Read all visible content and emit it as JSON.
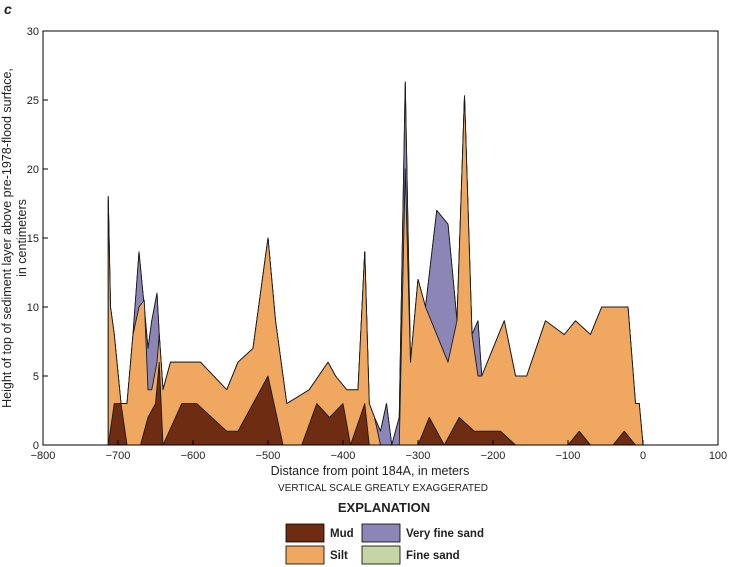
{
  "panel_letter": "c",
  "note": "VERTICAL SCALE GREATLY EXAGGERATED",
  "legend_title": "EXPLANATION",
  "chart_data": {
    "type": "area",
    "xlabel": "Distance from point 184A, in meters",
    "ylabel_lines": [
      "Height of top of sediment layer above pre-1978-flood surface,",
      "in centimeters"
    ],
    "xlim": [
      -800,
      100
    ],
    "ylim": [
      0,
      30
    ],
    "xticks": [
      -800,
      -700,
      -600,
      -500,
      -400,
      -300,
      -200,
      -100,
      0,
      100
    ],
    "yticks": [
      0,
      5,
      10,
      15,
      20,
      25,
      30
    ],
    "grid": false,
    "legend": "bottom-center",
    "series": [
      {
        "name": "Fine sand",
        "color": "#c5d6a4",
        "points": [
          [
            -713,
            18
          ],
          [
            -710,
            10
          ],
          [
            -705,
            8
          ],
          [
            -696,
            3
          ],
          [
            -688,
            3
          ],
          [
            -680,
            8
          ],
          [
            -672,
            14
          ],
          [
            -665,
            10
          ],
          [
            -660,
            7
          ],
          [
            -655,
            9
          ],
          [
            -648,
            11
          ],
          [
            -645,
            8
          ],
          [
            -640,
            4
          ],
          [
            -630,
            6
          ],
          [
            -590,
            6
          ],
          [
            -555,
            4
          ],
          [
            -540,
            6
          ],
          [
            -520,
            7
          ],
          [
            -500,
            15
          ],
          [
            -490,
            9
          ],
          [
            -475,
            3
          ],
          [
            -460,
            3.5
          ],
          [
            -445,
            4
          ],
          [
            -420,
            6
          ],
          [
            -410,
            5
          ],
          [
            -395,
            4
          ],
          [
            -380,
            4
          ],
          [
            -371,
            14
          ],
          [
            -365,
            3
          ],
          [
            -358,
            2
          ],
          [
            -350,
            1
          ],
          [
            -342,
            3
          ],
          [
            -335,
            0
          ],
          [
            -325,
            2
          ],
          [
            -317,
            26.3
          ],
          [
            -310,
            6
          ],
          [
            -300,
            12
          ],
          [
            -290,
            10
          ],
          [
            -275,
            17
          ],
          [
            -260,
            16
          ],
          [
            -248,
            9
          ],
          [
            -238,
            25.3
          ],
          [
            -228,
            8
          ],
          [
            -220,
            9
          ],
          [
            -215,
            5
          ],
          [
            -200,
            7
          ],
          [
            -185,
            9
          ],
          [
            -170,
            5
          ],
          [
            -155,
            5
          ],
          [
            -130,
            9
          ],
          [
            -105,
            8
          ],
          [
            -90,
            9
          ],
          [
            -70,
            8
          ],
          [
            -55,
            10
          ],
          [
            -20,
            10
          ],
          [
            -10,
            3
          ],
          [
            -5,
            3
          ],
          [
            0,
            0
          ]
        ]
      },
      {
        "name": "Very fine sand",
        "color": "#8b86b6",
        "points": [
          [
            -713,
            18
          ],
          [
            -710,
            10
          ],
          [
            -705,
            8
          ],
          [
            -696,
            3
          ],
          [
            -688,
            3
          ],
          [
            -680,
            8
          ],
          [
            -672,
            14
          ],
          [
            -665,
            10
          ],
          [
            -660,
            7
          ],
          [
            -655,
            9
          ],
          [
            -648,
            11
          ],
          [
            -645,
            8
          ],
          [
            -640,
            4
          ],
          [
            -630,
            6
          ],
          [
            -590,
            6
          ],
          [
            -555,
            4
          ],
          [
            -540,
            6
          ],
          [
            -520,
            7
          ],
          [
            -500,
            15
          ],
          [
            -490,
            9
          ],
          [
            -475,
            3
          ],
          [
            -460,
            3.5
          ],
          [
            -445,
            4
          ],
          [
            -420,
            6
          ],
          [
            -410,
            5
          ],
          [
            -395,
            4
          ],
          [
            -380,
            4
          ],
          [
            -371,
            14
          ],
          [
            -365,
            3
          ],
          [
            -358,
            2
          ],
          [
            -350,
            1
          ],
          [
            -342,
            3
          ],
          [
            -335,
            0
          ],
          [
            -325,
            2
          ],
          [
            -317,
            26.3
          ],
          [
            -310,
            6
          ],
          [
            -300,
            12
          ],
          [
            -290,
            10
          ],
          [
            -275,
            17
          ],
          [
            -260,
            16
          ],
          [
            -248,
            9
          ],
          [
            -238,
            25.3
          ],
          [
            -228,
            8
          ],
          [
            -220,
            9
          ],
          [
            -215,
            5
          ],
          [
            -200,
            7
          ],
          [
            -185,
            9
          ],
          [
            -170,
            5
          ],
          [
            -155,
            5
          ],
          [
            -130,
            9
          ],
          [
            -105,
            8
          ],
          [
            -90,
            9
          ],
          [
            -70,
            8
          ],
          [
            -55,
            10
          ],
          [
            -20,
            10
          ],
          [
            -10,
            3
          ],
          [
            -5,
            3
          ],
          [
            0,
            0
          ]
        ]
      },
      {
        "name": "Silt",
        "color": "#f0a860",
        "points": [
          [
            -713,
            17.7
          ],
          [
            -710,
            10
          ],
          [
            -705,
            8
          ],
          [
            -696,
            3
          ],
          [
            -688,
            3
          ],
          [
            -680,
            8
          ],
          [
            -672,
            10
          ],
          [
            -665,
            10.5
          ],
          [
            -660,
            4
          ],
          [
            -655,
            4
          ],
          [
            -648,
            6
          ],
          [
            -645,
            8
          ],
          [
            -640,
            4
          ],
          [
            -630,
            6
          ],
          [
            -590,
            6
          ],
          [
            -555,
            4
          ],
          [
            -540,
            6
          ],
          [
            -520,
            7
          ],
          [
            -500,
            15
          ],
          [
            -490,
            9
          ],
          [
            -475,
            3
          ],
          [
            -460,
            3.5
          ],
          [
            -445,
            4
          ],
          [
            -420,
            6
          ],
          [
            -410,
            5
          ],
          [
            -395,
            4
          ],
          [
            -380,
            4
          ],
          [
            -371,
            14
          ],
          [
            -365,
            3
          ],
          [
            -358,
            2
          ],
          [
            -350,
            0
          ],
          [
            -342,
            0
          ],
          [
            -335,
            0
          ],
          [
            -325,
            0
          ],
          [
            -317,
            20
          ],
          [
            -310,
            6
          ],
          [
            -300,
            12
          ],
          [
            -290,
            10
          ],
          [
            -275,
            8
          ],
          [
            -260,
            6
          ],
          [
            -248,
            9
          ],
          [
            -238,
            25.3
          ],
          [
            -228,
            8
          ],
          [
            -220,
            5
          ],
          [
            -215,
            5
          ],
          [
            -200,
            7
          ],
          [
            -185,
            9
          ],
          [
            -170,
            5
          ],
          [
            -155,
            5
          ],
          [
            -130,
            9
          ],
          [
            -105,
            8
          ],
          [
            -90,
            9
          ],
          [
            -70,
            8
          ],
          [
            -55,
            10
          ],
          [
            -20,
            10
          ],
          [
            -10,
            3
          ],
          [
            -5,
            3
          ],
          [
            0,
            0
          ]
        ]
      },
      {
        "name": "Mud",
        "color": "#6e2c12",
        "points": [
          [
            -713,
            0
          ],
          [
            -705,
            3
          ],
          [
            -696,
            3
          ],
          [
            -688,
            0
          ],
          [
            -670,
            0
          ],
          [
            -660,
            2
          ],
          [
            -650,
            3
          ],
          [
            -645,
            6
          ],
          [
            -640,
            0
          ],
          [
            -615,
            3
          ],
          [
            -595,
            3
          ],
          [
            -575,
            2
          ],
          [
            -555,
            1
          ],
          [
            -540,
            1
          ],
          [
            -520,
            3
          ],
          [
            -500,
            5
          ],
          [
            -480,
            0
          ],
          [
            -455,
            0
          ],
          [
            -435,
            3
          ],
          [
            -418,
            2
          ],
          [
            -400,
            3
          ],
          [
            -390,
            0
          ],
          [
            -371,
            3
          ],
          [
            -365,
            0
          ],
          [
            -330,
            0
          ],
          [
            -320,
            0
          ],
          [
            -310,
            0
          ],
          [
            -300,
            0
          ],
          [
            -285,
            2
          ],
          [
            -265,
            0
          ],
          [
            -245,
            2
          ],
          [
            -225,
            1
          ],
          [
            -210,
            1
          ],
          [
            -190,
            1
          ],
          [
            -170,
            0
          ],
          [
            -155,
            0
          ],
          [
            -100,
            0
          ],
          [
            -85,
            1
          ],
          [
            -70,
            0
          ],
          [
            -40,
            0
          ],
          [
            -25,
            1
          ],
          [
            -10,
            0
          ],
          [
            0,
            0
          ]
        ]
      }
    ]
  }
}
